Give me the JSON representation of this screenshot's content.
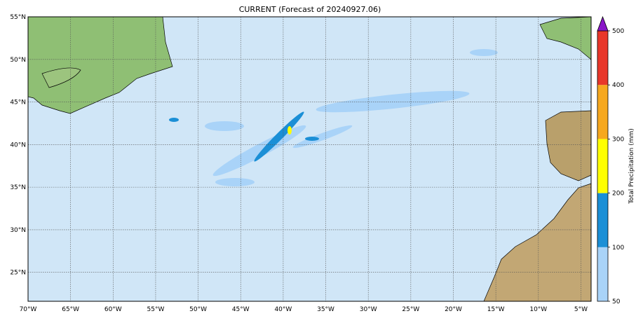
{
  "title": "CURRENT (Forecast of 20240927.06)",
  "map": {
    "xlim": [
      -70,
      -3.8
    ],
    "ylim": [
      21.6,
      55
    ],
    "xticks": [
      {
        "value": -70,
        "label": "70°W"
      },
      {
        "value": -65,
        "label": "65°W"
      },
      {
        "value": -60,
        "label": "60°W"
      },
      {
        "value": -55,
        "label": "55°W"
      },
      {
        "value": -50,
        "label": "50°W"
      },
      {
        "value": -45,
        "label": "45°W"
      },
      {
        "value": -40,
        "label": "40°W"
      },
      {
        "value": -35,
        "label": "35°W"
      },
      {
        "value": -30,
        "label": "30°W"
      },
      {
        "value": -25,
        "label": "25°W"
      },
      {
        "value": -20,
        "label": "20°W"
      },
      {
        "value": -15,
        "label": "15°W"
      },
      {
        "value": -10,
        "label": "10°W"
      },
      {
        "value": -5,
        "label": "5°W"
      }
    ],
    "yticks": [
      {
        "value": 25,
        "label": "25°N"
      },
      {
        "value": 30,
        "label": "30°N"
      },
      {
        "value": 35,
        "label": "35°N"
      },
      {
        "value": 40,
        "label": "40°N"
      },
      {
        "value": 45,
        "label": "45°N"
      },
      {
        "value": 50,
        "label": "50°N"
      },
      {
        "value": 55,
        "label": "55°N"
      }
    ],
    "grid": true
  },
  "colorbar": {
    "label": "Total Precipitation (mm)",
    "ticks": [
      50,
      100,
      200,
      300,
      400,
      500
    ],
    "colors": [
      "#a9d3f8",
      "#1b8fd6",
      "#ffff00",
      "#f6a81f",
      "#e8372a"
    ],
    "extend_color": "#8a17c8"
  }
}
